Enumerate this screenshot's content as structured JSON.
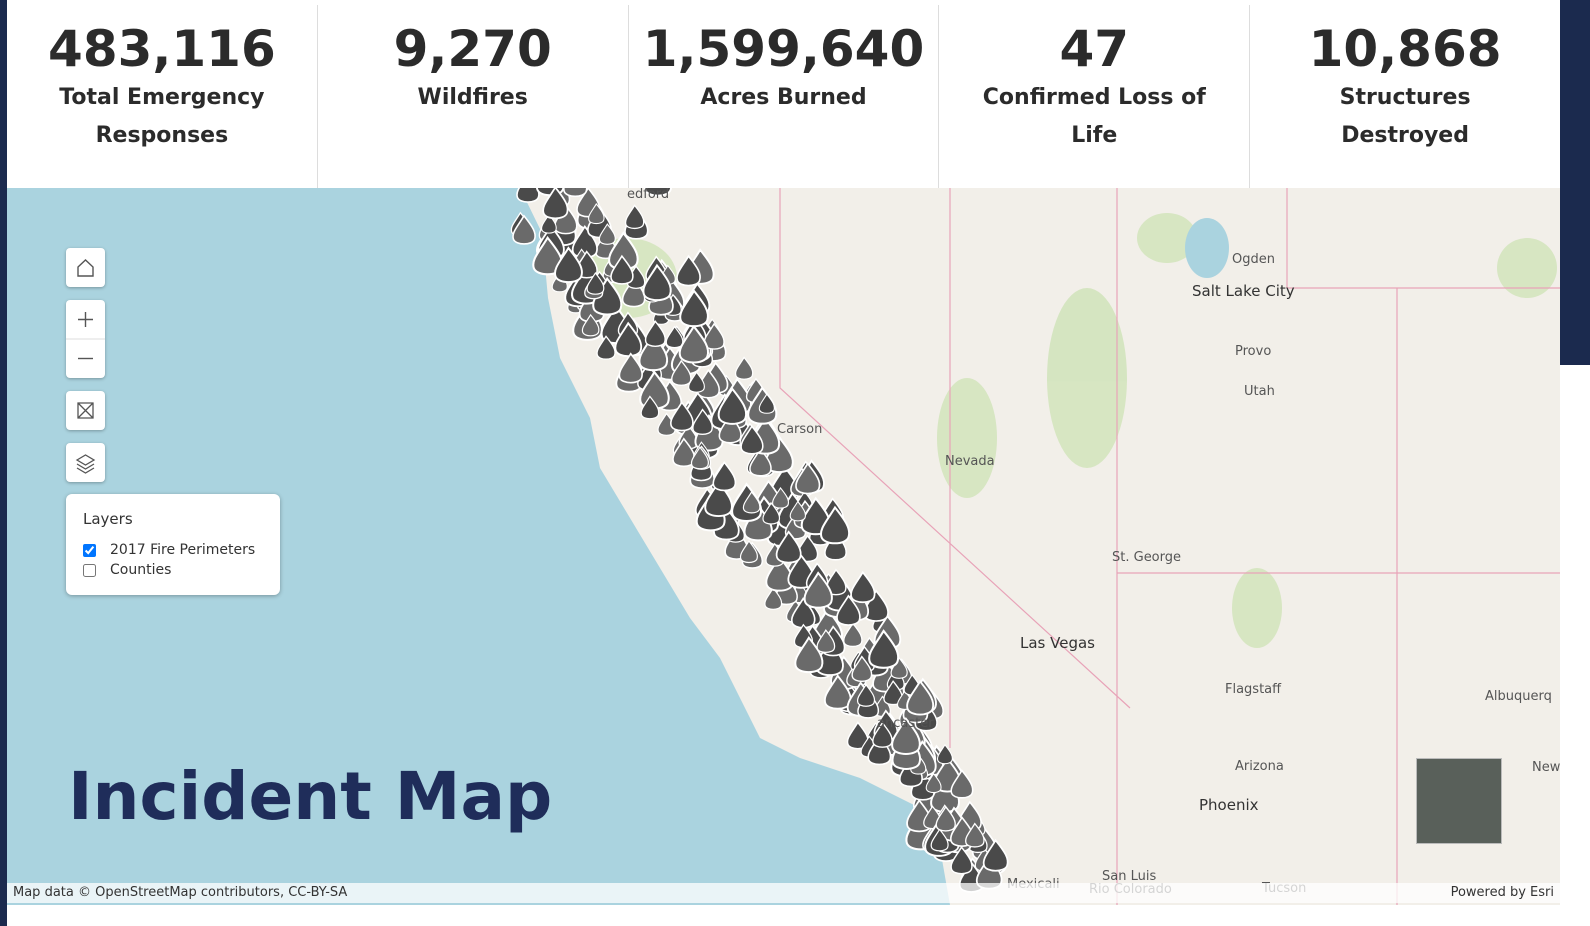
{
  "stats": [
    {
      "value": "483,116",
      "label": "Total Emergency Responses"
    },
    {
      "value": "9,270",
      "label": "Wildfires"
    },
    {
      "value": "1,599,640",
      "label": "Acres Burned"
    },
    {
      "value": "47",
      "label": "Confirmed Loss of Life"
    },
    {
      "value": "10,868",
      "label": "Structures Destroyed"
    }
  ],
  "map": {
    "title": "Incident Map",
    "layers": {
      "heading": "Layers",
      "items": [
        {
          "label": "2017 Fire Perimeters",
          "checked": true
        },
        {
          "label": "Counties",
          "checked": false
        }
      ]
    },
    "labels": [
      "edford",
      "Ogden",
      "Salt Lake City",
      "Provo",
      "Utah",
      "Nevada",
      "Carson",
      "St. George",
      "Las Vegas",
      "Flagstaff",
      "Albuquerq",
      "Arizona",
      "Phoenix",
      "New",
      "San Luis",
      "Mexicali",
      "Rio Colorado",
      "Tucson",
      "ancaster"
    ],
    "attribution": "Map data © OpenStreetMap contributors, CC-BY-SA",
    "powered_by": "Powered by Esri"
  }
}
